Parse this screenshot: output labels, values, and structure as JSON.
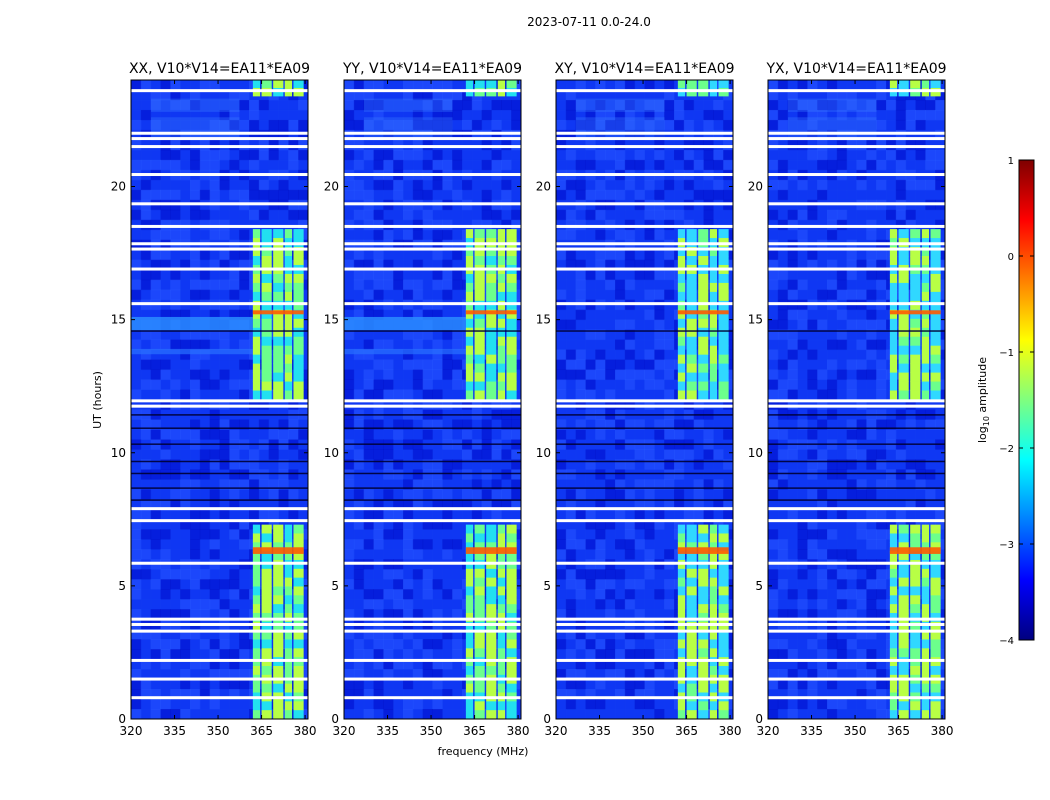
{
  "chart_data": {
    "type": "heatmap",
    "suptitle": "2023-07-11 0.0-24.0",
    "xlabel": "frequency (MHz)",
    "ylabel": "UT (hours)",
    "xlim": [
      320,
      381
    ],
    "ylim": [
      0,
      24
    ],
    "xticks": [
      320,
      335,
      350,
      365,
      380
    ],
    "yticks": [
      0,
      5,
      10,
      15,
      20
    ],
    "colorbar": {
      "label": "log",
      "label_sub": "10",
      "label_rest": " amplitude",
      "range": [
        -4,
        1
      ],
      "ticks": [
        1,
        0,
        -1,
        -2,
        -3,
        -4
      ],
      "colormap": [
        "#00007f",
        "#0000ff",
        "#007fff",
        "#00ffff",
        "#7fff7f",
        "#ffff00",
        "#ff7f00",
        "#ff0000",
        "#7f0000"
      ]
    },
    "panels": [
      {
        "title": "XX, V10*V14=EA11*EA09"
      },
      {
        "title": "YY, V10*V14=EA11*EA09"
      },
      {
        "title": "XY, V10*V14=EA11*EA09"
      },
      {
        "title": "YX, V10*V14=EA11*EA09"
      }
    ],
    "rfi_band": {
      "freq_start": 362,
      "freq_end": 380,
      "active_hours": [
        [
          0,
          7.3
        ],
        [
          12,
          18.4
        ],
        [
          23.4,
          24
        ]
      ]
    },
    "flagged_hours": [
      0.8,
      1.5,
      2.2,
      3.3,
      3.55,
      3.75,
      5.85,
      7.45,
      7.9,
      11.75,
      11.95,
      15.6,
      16.9,
      17.65,
      17.85,
      18.5,
      19.35,
      20.45,
      21.5,
      21.8,
      22.0,
      23.6
    ]
  }
}
